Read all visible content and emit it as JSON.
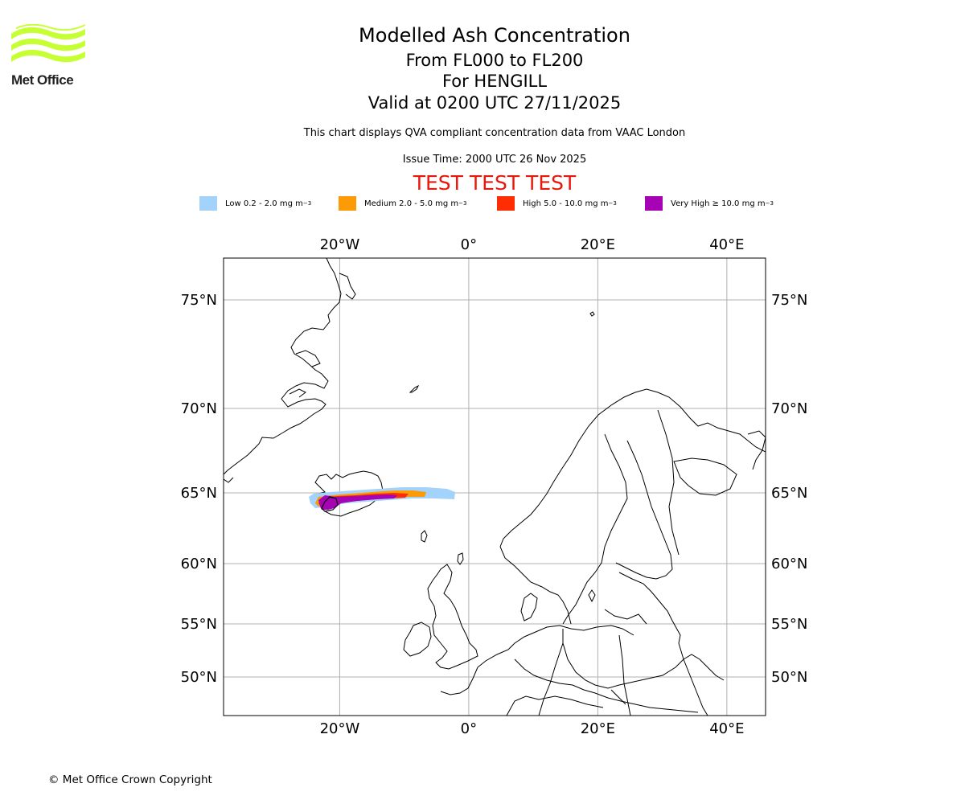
{
  "logo": {
    "text": "Met Office",
    "color": "#c6ff33"
  },
  "header": {
    "title": "Modelled Ash Concentration",
    "levels": "From FL000 to FL200",
    "volcano": "For HENGILL",
    "valid": "Valid at 0200 UTC 27/11/2025",
    "note": "This chart displays QVA compliant concentration data from VAAC London",
    "issue": "Issue Time: 2000 UTC 26 Nov 2025",
    "test": "TEST TEST TEST"
  },
  "legend": [
    {
      "label": "Low 0.2 - 2.0 mg m",
      "unit_sup": "−3",
      "color": "#a3d3fb"
    },
    {
      "label": "Medium 2.0 - 5.0 mg m",
      "unit_sup": "−3",
      "color": "#fd9a08"
    },
    {
      "label": "High 5.0 - 10.0 mg m",
      "unit_sup": "−3",
      "color": "#fe2d04"
    },
    {
      "label": "Very High  ≥  10.0 mg m",
      "unit_sup": "−3",
      "color": "#a503b3"
    }
  ],
  "map": {
    "lon_range": [
      -38,
      46
    ],
    "lat_range": [
      47.5,
      77
    ],
    "lon_ticks": [
      {
        "value": -20,
        "label": "20°W"
      },
      {
        "value": 0,
        "label": "0°"
      },
      {
        "value": 20,
        "label": "20°E"
      },
      {
        "value": 40,
        "label": "40°E"
      }
    ],
    "lat_ticks": [
      {
        "value": 75,
        "label": "75°N"
      },
      {
        "value": 70,
        "label": "70°N"
      },
      {
        "value": 65,
        "label": "65°N"
      },
      {
        "value": 60,
        "label": "60°N"
      },
      {
        "value": 55,
        "label": "55°N"
      },
      {
        "value": 50,
        "label": "50°N"
      }
    ]
  },
  "footer": {
    "copyright": "© Met Office Crown Copyright"
  }
}
